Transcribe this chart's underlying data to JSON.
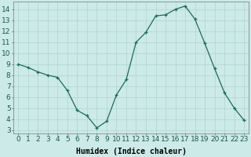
{
  "x": [
    0,
    1,
    2,
    3,
    4,
    5,
    6,
    7,
    8,
    9,
    10,
    11,
    12,
    13,
    14,
    15,
    16,
    17,
    18,
    19,
    20,
    21,
    22,
    23
  ],
  "y": [
    9,
    8.7,
    8.3,
    8.0,
    7.8,
    6.6,
    4.8,
    4.3,
    3.2,
    3.8,
    6.2,
    7.6,
    11.0,
    11.9,
    13.4,
    13.5,
    14.0,
    14.3,
    13.1,
    10.9,
    8.6,
    6.4,
    5.0,
    3.9
  ],
  "line_color": "#1a6b5a",
  "marker": "+",
  "marker_size": 3,
  "bg_color": "#cceae7",
  "grid_color": "#b0d4cf",
  "xlabel": "Humidex (Indice chaleur)",
  "xlim": [
    -0.5,
    23.5
  ],
  "ylim": [
    2.7,
    14.7
  ],
  "yticks": [
    3,
    4,
    5,
    6,
    7,
    8,
    9,
    10,
    11,
    12,
    13,
    14
  ],
  "xtick_labels": [
    "0",
    "1",
    "2",
    "3",
    "4",
    "5",
    "6",
    "7",
    "8",
    "9",
    "10",
    "11",
    "12",
    "13",
    "14",
    "15",
    "16",
    "17",
    "18",
    "19",
    "20",
    "21",
    "22",
    "23"
  ],
  "xlabel_fontsize": 7,
  "tick_fontsize": 6.5,
  "linewidth": 0.9,
  "markeredgewidth": 0.9
}
